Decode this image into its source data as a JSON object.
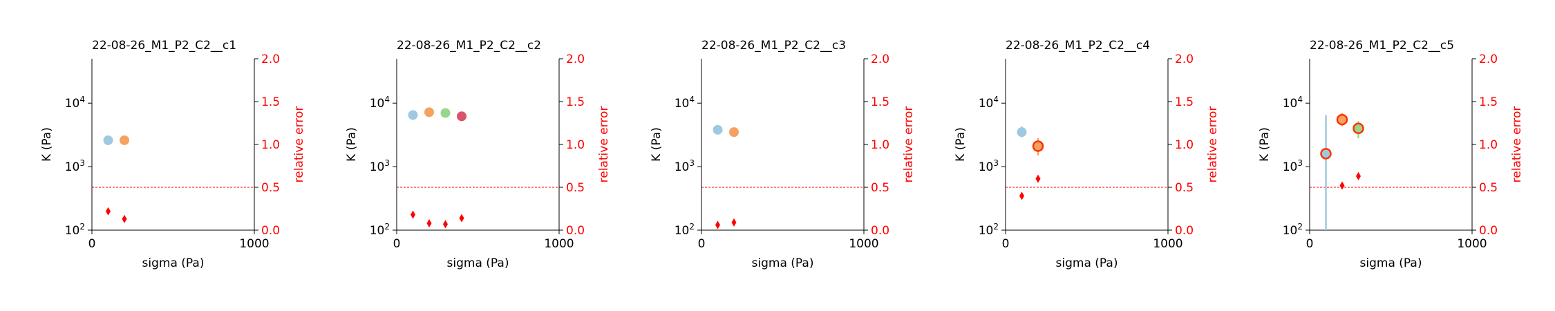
{
  "figure": {
    "background": "#ffffff"
  },
  "style": {
    "axis_color": "#000000",
    "right_axis_color": "#ff0000",
    "threshold_color": "#ff0000",
    "series_colors": [
      "#9ecae1",
      "#f4a261",
      "#98d68a",
      "#d9536a"
    ]
  },
  "chart_data": [
    {
      "type": "scatter",
      "title": "22-08-26_M1_P2_C2__c1",
      "xlabel": "sigma (Pa)",
      "ylabel": "K (Pa)",
      "y2label": "relative error",
      "xlim": [
        0,
        1000
      ],
      "xticks": [
        "0",
        "1000"
      ],
      "ylim": [
        100,
        50000
      ],
      "yscale": "log",
      "yticks": [
        {
          "exp": "2",
          "value": 100
        },
        {
          "exp": "3",
          "value": 1000
        },
        {
          "exp": "4",
          "value": 10000
        }
      ],
      "y2lim": [
        0,
        2
      ],
      "y2ticks": [
        "0.0",
        "0.5",
        "1.0",
        "1.5",
        "2.0"
      ],
      "threshold": 0.5,
      "points": [
        {
          "x": 100,
          "y": 2600,
          "color": "#9ecae1"
        },
        {
          "x": 200,
          "y": 2600,
          "color": "#f4a261"
        }
      ],
      "relative_error": [
        {
          "x": 100,
          "y": 0.22
        },
        {
          "x": 200,
          "y": 0.13
        }
      ]
    },
    {
      "type": "scatter",
      "title": "22-08-26_M1_P2_C2__c2",
      "xlabel": "sigma (Pa)",
      "ylabel": "K (Pa)",
      "y2label": "relative error",
      "xlim": [
        0,
        1000
      ],
      "xticks": [
        "0",
        "1000"
      ],
      "ylim": [
        100,
        50000
      ],
      "yscale": "log",
      "yticks": [
        {
          "exp": "2",
          "value": 100
        },
        {
          "exp": "3",
          "value": 1000
        },
        {
          "exp": "4",
          "value": 10000
        }
      ],
      "y2lim": [
        0,
        2
      ],
      "y2ticks": [
        "0.0",
        "0.5",
        "1.0",
        "1.5",
        "2.0"
      ],
      "threshold": 0.5,
      "points": [
        {
          "x": 100,
          "y": 6500,
          "color": "#9ecae1"
        },
        {
          "x": 200,
          "y": 7200,
          "color": "#f4a261"
        },
        {
          "x": 300,
          "y": 7000,
          "color": "#98d68a"
        },
        {
          "x": 400,
          "y": 6200,
          "color": "#d9536a"
        }
      ],
      "relative_error": [
        {
          "x": 100,
          "y": 0.18
        },
        {
          "x": 200,
          "y": 0.08
        },
        {
          "x": 300,
          "y": 0.07
        },
        {
          "x": 400,
          "y": 0.14
        }
      ]
    },
    {
      "type": "scatter",
      "title": "22-08-26_M1_P2_C2__c3",
      "xlabel": "sigma (Pa)",
      "ylabel": "K (Pa)",
      "y2label": "relative error",
      "xlim": [
        0,
        1000
      ],
      "xticks": [
        "0",
        "1000"
      ],
      "ylim": [
        100,
        50000
      ],
      "yscale": "log",
      "yticks": [
        {
          "exp": "2",
          "value": 100
        },
        {
          "exp": "3",
          "value": 1000
        },
        {
          "exp": "4",
          "value": 10000
        }
      ],
      "y2lim": [
        0,
        2
      ],
      "y2ticks": [
        "0.0",
        "0.5",
        "1.0",
        "1.5",
        "2.0"
      ],
      "threshold": 0.5,
      "points": [
        {
          "x": 100,
          "y": 3800,
          "color": "#9ecae1"
        },
        {
          "x": 200,
          "y": 3500,
          "color": "#f4a261"
        }
      ],
      "relative_error": [
        {
          "x": 100,
          "y": 0.06
        },
        {
          "x": 200,
          "y": 0.09
        }
      ]
    },
    {
      "type": "scatter",
      "title": "22-08-26_M1_P2_C2__c4",
      "xlabel": "sigma (Pa)",
      "ylabel": "K (Pa)",
      "y2label": "relative error",
      "xlim": [
        0,
        1000
      ],
      "xticks": [
        "0",
        "1000"
      ],
      "ylim": [
        100,
        50000
      ],
      "yscale": "log",
      "yticks": [
        {
          "exp": "2",
          "value": 100
        },
        {
          "exp": "3",
          "value": 1000
        },
        {
          "exp": "4",
          "value": 10000
        }
      ],
      "y2lim": [
        0,
        2
      ],
      "y2ticks": [
        "0.0",
        "0.5",
        "1.0",
        "1.5",
        "2.0"
      ],
      "threshold": 0.5,
      "points": [
        {
          "x": 100,
          "y": 3500,
          "color": "#9ecae1",
          "yerr": [
            2900,
            4300
          ]
        },
        {
          "x": 200,
          "y": 2100,
          "color": "#f4a261",
          "edge": "#ff3300",
          "yerr": [
            1500,
            2800
          ]
        }
      ],
      "relative_error": [
        {
          "x": 100,
          "y": 0.4
        },
        {
          "x": 200,
          "y": 0.6
        }
      ]
    },
    {
      "type": "scatter",
      "title": "22-08-26_M1_P2_C2__c5",
      "xlabel": "sigma (Pa)",
      "ylabel": "K (Pa)",
      "y2label": "relative error",
      "xlim": [
        0,
        1000
      ],
      "xticks": [
        "0",
        "1000"
      ],
      "ylim": [
        100,
        50000
      ],
      "yscale": "log",
      "yticks": [
        {
          "exp": "2",
          "value": 100
        },
        {
          "exp": "3",
          "value": 1000
        },
        {
          "exp": "4",
          "value": 10000
        }
      ],
      "y2lim": [
        0,
        2
      ],
      "y2ticks": [
        "0.0",
        "0.5",
        "1.0",
        "1.5",
        "2.0"
      ],
      "threshold": 0.5,
      "points": [
        {
          "x": 100,
          "y": 1600,
          "color": "#9ecae1",
          "edge": "#ff3300",
          "yerr": [
            100,
            6500
          ]
        },
        {
          "x": 200,
          "y": 5500,
          "color": "#f4a261",
          "edge": "#ff3300",
          "yerr": [
            4300,
            7000
          ]
        },
        {
          "x": 300,
          "y": 4000,
          "color": "#98d68a",
          "edge": "#ff3300",
          "yerr": [
            2800,
            5200
          ]
        }
      ],
      "relative_error": [
        {
          "x": 200,
          "y": 0.52
        },
        {
          "x": 300,
          "y": 0.63
        }
      ]
    }
  ]
}
